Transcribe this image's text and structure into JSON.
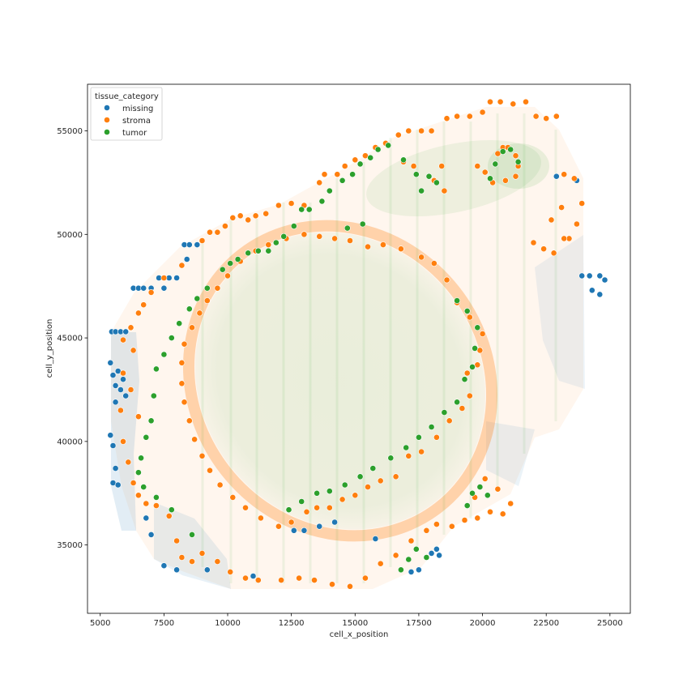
{
  "chart_data": {
    "type": "scatter",
    "xlabel": "cell_x_position",
    "ylabel": "cell_y_position",
    "xlim": [
      4500,
      25800
    ],
    "ylim": [
      31700,
      57250
    ],
    "x_ticks": [
      5000,
      7500,
      10000,
      12500,
      15000,
      17500,
      20000,
      22500,
      25000
    ],
    "y_ticks": [
      35000,
      40000,
      45000,
      50000,
      55000
    ],
    "x_tick_labels": [
      "5000",
      "7500",
      "10000",
      "12500",
      "15000",
      "17500",
      "20000",
      "22500",
      "25000"
    ],
    "y_tick_labels": [
      "35000",
      "40000",
      "45000",
      "50000",
      "55000"
    ],
    "grid": false,
    "legend": {
      "title": "tissue_category",
      "placement": "upper-left",
      "entries": [
        {
          "label": "missing",
          "color": "#1f77b4"
        },
        {
          "label": "stroma",
          "color": "#ff7f0e"
        },
        {
          "label": "tumor",
          "color": "#2ca02c"
        }
      ]
    },
    "series": [
      {
        "name": "missing",
        "color": "#1f77b4",
        "points": [
          [
            5450,
            45300
          ],
          [
            5600,
            45300
          ],
          [
            5800,
            45300
          ],
          [
            6000,
            45300
          ],
          [
            5400,
            43800
          ],
          [
            5500,
            43200
          ],
          [
            5600,
            42700
          ],
          [
            5700,
            43400
          ],
          [
            5800,
            42500
          ],
          [
            5900,
            43000
          ],
          [
            6000,
            42200
          ],
          [
            5600,
            41900
          ],
          [
            5400,
            40300
          ],
          [
            5500,
            39800
          ],
          [
            5600,
            38700
          ],
          [
            5500,
            38000
          ],
          [
            5700,
            37900
          ],
          [
            6300,
            47400
          ],
          [
            6500,
            47400
          ],
          [
            6700,
            47400
          ],
          [
            7000,
            47400
          ],
          [
            7300,
            47900
          ],
          [
            7500,
            47400
          ],
          [
            7700,
            47900
          ],
          [
            8000,
            47900
          ],
          [
            8300,
            49500
          ],
          [
            8500,
            49500
          ],
          [
            8800,
            49500
          ],
          [
            8400,
            48800
          ],
          [
            6800,
            36300
          ],
          [
            7000,
            35500
          ],
          [
            7500,
            34000
          ],
          [
            8000,
            33800
          ],
          [
            9200,
            33800
          ],
          [
            11000,
            33500
          ],
          [
            12600,
            35700
          ],
          [
            13000,
            35700
          ],
          [
            13600,
            35900
          ],
          [
            14200,
            36100
          ],
          [
            15800,
            35300
          ],
          [
            17200,
            33700
          ],
          [
            17500,
            33800
          ],
          [
            18000,
            34600
          ],
          [
            18300,
            34500
          ],
          [
            18200,
            34800
          ],
          [
            23900,
            48000
          ],
          [
            24200,
            48000
          ],
          [
            24600,
            48000
          ],
          [
            24800,
            47800
          ],
          [
            24300,
            47300
          ],
          [
            24600,
            47100
          ],
          [
            22900,
            52800
          ],
          [
            23700,
            52600
          ]
        ]
      },
      {
        "name": "stroma",
        "color": "#ff7f0e",
        "points": [
          [
            9300,
            50100
          ],
          [
            9600,
            50100
          ],
          [
            9900,
            50400
          ],
          [
            10200,
            50800
          ],
          [
            10500,
            50900
          ],
          [
            10800,
            50700
          ],
          [
            11100,
            50900
          ],
          [
            11500,
            51000
          ],
          [
            12000,
            51400
          ],
          [
            12500,
            51500
          ],
          [
            13000,
            51400
          ],
          [
            13600,
            52500
          ],
          [
            13800,
            52900
          ],
          [
            14300,
            52900
          ],
          [
            14600,
            53300
          ],
          [
            15000,
            53600
          ],
          [
            15400,
            53800
          ],
          [
            15800,
            54200
          ],
          [
            16200,
            54400
          ],
          [
            16700,
            54800
          ],
          [
            17100,
            55000
          ],
          [
            17600,
            55000
          ],
          [
            18000,
            55000
          ],
          [
            18600,
            55600
          ],
          [
            19000,
            55700
          ],
          [
            19500,
            55700
          ],
          [
            20000,
            55900
          ],
          [
            20300,
            56400
          ],
          [
            20700,
            56400
          ],
          [
            21200,
            56300
          ],
          [
            21700,
            56400
          ],
          [
            22100,
            55700
          ],
          [
            22500,
            55600
          ],
          [
            22900,
            55700
          ],
          [
            23200,
            52900
          ],
          [
            23600,
            52700
          ],
          [
            23900,
            51500
          ],
          [
            23700,
            50500
          ],
          [
            23400,
            49800
          ],
          [
            9000,
            49700
          ],
          [
            8200,
            48500
          ],
          [
            7500,
            47900
          ],
          [
            7000,
            47200
          ],
          [
            6700,
            46600
          ],
          [
            6500,
            46200
          ],
          [
            6200,
            45500
          ],
          [
            5900,
            44900
          ],
          [
            6300,
            44400
          ],
          [
            5900,
            43300
          ],
          [
            6200,
            42500
          ],
          [
            6500,
            41200
          ],
          [
            5800,
            41500
          ],
          [
            5900,
            40000
          ],
          [
            6100,
            39000
          ],
          [
            6300,
            38000
          ],
          [
            6500,
            37400
          ],
          [
            6800,
            37000
          ],
          [
            7200,
            36900
          ],
          [
            7700,
            36400
          ],
          [
            8000,
            35200
          ],
          [
            8200,
            34400
          ],
          [
            8600,
            34200
          ],
          [
            9000,
            34600
          ],
          [
            9600,
            34200
          ],
          [
            10100,
            33700
          ],
          [
            10700,
            33400
          ],
          [
            11200,
            33300
          ],
          [
            12100,
            33300
          ],
          [
            12800,
            33400
          ],
          [
            13400,
            33300
          ],
          [
            14100,
            33100
          ],
          [
            14800,
            33000
          ],
          [
            15400,
            33400
          ],
          [
            16000,
            34100
          ],
          [
            16600,
            34500
          ],
          [
            17200,
            35200
          ],
          [
            17800,
            35700
          ],
          [
            18200,
            36000
          ],
          [
            18800,
            35900
          ],
          [
            19300,
            36200
          ],
          [
            19800,
            36300
          ],
          [
            20300,
            36600
          ],
          [
            20800,
            36500
          ],
          [
            21100,
            37000
          ],
          [
            20600,
            37700
          ],
          [
            20100,
            38200
          ],
          [
            19700,
            37300
          ],
          [
            12000,
            35900
          ],
          [
            12500,
            36100
          ],
          [
            13100,
            36600
          ],
          [
            13500,
            36800
          ],
          [
            14000,
            36800
          ],
          [
            14500,
            37200
          ],
          [
            15000,
            37400
          ],
          [
            15500,
            37800
          ],
          [
            16000,
            38100
          ],
          [
            16600,
            38300
          ],
          [
            17100,
            39300
          ],
          [
            17600,
            39500
          ],
          [
            18200,
            40200
          ],
          [
            18700,
            41000
          ],
          [
            19200,
            41600
          ],
          [
            19500,
            42200
          ],
          [
            19400,
            43300
          ],
          [
            19800,
            43700
          ],
          [
            19900,
            44400
          ],
          [
            20000,
            45200
          ],
          [
            19500,
            46000
          ],
          [
            19000,
            46700
          ],
          [
            18600,
            47800
          ],
          [
            18100,
            48600
          ],
          [
            17600,
            48900
          ],
          [
            16800,
            49300
          ],
          [
            16100,
            49500
          ],
          [
            15500,
            49400
          ],
          [
            14800,
            49700
          ],
          [
            14200,
            49800
          ],
          [
            13600,
            49900
          ],
          [
            13000,
            50000
          ],
          [
            12300,
            49800
          ],
          [
            11600,
            49500
          ],
          [
            11100,
            49200
          ],
          [
            10500,
            48700
          ],
          [
            10000,
            48000
          ],
          [
            9600,
            47400
          ],
          [
            9200,
            46800
          ],
          [
            8900,
            46200
          ],
          [
            8600,
            45500
          ],
          [
            8300,
            44700
          ],
          [
            8200,
            43800
          ],
          [
            8200,
            42800
          ],
          [
            8300,
            41900
          ],
          [
            8500,
            41000
          ],
          [
            8700,
            40100
          ],
          [
            9000,
            39300
          ],
          [
            9300,
            38600
          ],
          [
            9700,
            37900
          ],
          [
            10200,
            37300
          ],
          [
            10700,
            36800
          ],
          [
            11300,
            36300
          ],
          [
            20500,
            53400
          ],
          [
            20600,
            53900
          ],
          [
            20800,
            54200
          ],
          [
            21000,
            54200
          ],
          [
            21300,
            53800
          ],
          [
            21400,
            53300
          ],
          [
            21300,
            52800
          ],
          [
            20900,
            52600
          ],
          [
            20400,
            52500
          ],
          [
            20100,
            53000
          ],
          [
            19800,
            53300
          ],
          [
            16900,
            53500
          ],
          [
            17300,
            53300
          ],
          [
            18100,
            52600
          ],
          [
            18500,
            52100
          ],
          [
            18400,
            53300
          ],
          [
            22000,
            49600
          ],
          [
            22400,
            49300
          ],
          [
            22800,
            49100
          ],
          [
            23200,
            49800
          ],
          [
            22700,
            50700
          ],
          [
            23100,
            51300
          ]
        ]
      },
      {
        "name": "tumor",
        "color": "#2ca02c",
        "points": [
          [
            9800,
            48300
          ],
          [
            10100,
            48600
          ],
          [
            10400,
            48800
          ],
          [
            10800,
            49100
          ],
          [
            11200,
            49200
          ],
          [
            11600,
            49200
          ],
          [
            11900,
            49600
          ],
          [
            12200,
            49900
          ],
          [
            12600,
            50400
          ],
          [
            12900,
            51200
          ],
          [
            13200,
            51200
          ],
          [
            13700,
            51600
          ],
          [
            14000,
            52100
          ],
          [
            14500,
            52600
          ],
          [
            14900,
            52900
          ],
          [
            15200,
            53400
          ],
          [
            15600,
            53700
          ],
          [
            15900,
            54100
          ],
          [
            16300,
            54300
          ],
          [
            15300,
            50500
          ],
          [
            14700,
            50300
          ],
          [
            9200,
            47400
          ],
          [
            8800,
            46900
          ],
          [
            8500,
            46400
          ],
          [
            8100,
            45700
          ],
          [
            7800,
            45000
          ],
          [
            7500,
            44200
          ],
          [
            7200,
            43500
          ],
          [
            7100,
            42200
          ],
          [
            7000,
            41000
          ],
          [
            6800,
            40200
          ],
          [
            6600,
            39200
          ],
          [
            6500,
            38500
          ],
          [
            6700,
            37800
          ],
          [
            7200,
            37300
          ],
          [
            7800,
            36700
          ],
          [
            8600,
            35500
          ],
          [
            12400,
            36700
          ],
          [
            12900,
            37100
          ],
          [
            13500,
            37500
          ],
          [
            14000,
            37600
          ],
          [
            14600,
            37900
          ],
          [
            15200,
            38300
          ],
          [
            15700,
            38700
          ],
          [
            16400,
            39200
          ],
          [
            17000,
            39700
          ],
          [
            17500,
            40200
          ],
          [
            18000,
            40700
          ],
          [
            18500,
            41400
          ],
          [
            19000,
            41900
          ],
          [
            19300,
            43000
          ],
          [
            19600,
            43600
          ],
          [
            19700,
            44500
          ],
          [
            19800,
            45500
          ],
          [
            19400,
            46300
          ],
          [
            19000,
            46800
          ],
          [
            17100,
            34300
          ],
          [
            17400,
            34800
          ],
          [
            17800,
            34400
          ],
          [
            16800,
            33800
          ],
          [
            19400,
            36900
          ],
          [
            19600,
            37500
          ],
          [
            19900,
            37800
          ],
          [
            20200,
            37400
          ],
          [
            20500,
            53400
          ],
          [
            20800,
            54000
          ],
          [
            21100,
            54100
          ],
          [
            21400,
            53500
          ],
          [
            20300,
            52700
          ],
          [
            16900,
            53600
          ],
          [
            17400,
            52900
          ],
          [
            17900,
            52800
          ],
          [
            18200,
            52500
          ],
          [
            17600,
            52100
          ]
        ]
      }
    ]
  }
}
